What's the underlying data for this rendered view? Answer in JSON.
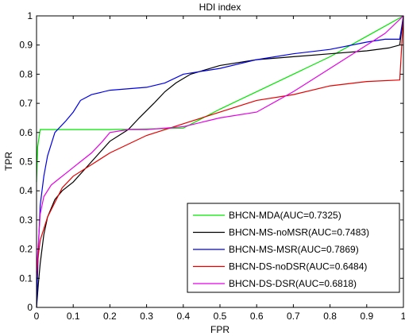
{
  "chart_data": {
    "type": "line",
    "title": "HDI index",
    "xlabel": "FPR",
    "ylabel": "TPR",
    "xlim": [
      0,
      1
    ],
    "ylim": [
      0,
      1
    ],
    "xticks": [
      0,
      0.1,
      0.2,
      0.3,
      0.4,
      0.5,
      0.6,
      0.7,
      0.8,
      0.9,
      1
    ],
    "yticks": [
      0,
      0.1,
      0.2,
      0.3,
      0.4,
      0.5,
      0.6,
      0.7,
      0.8,
      0.9,
      1
    ],
    "xtick_labels": [
      "0",
      "0.1",
      "0.2",
      "0.3",
      "0.4",
      "0.5",
      "0.6",
      "0.7",
      "0.8",
      "0.9",
      "1"
    ],
    "ytick_labels": [
      "0",
      "0.1",
      "0.2",
      "0.3",
      "0.4",
      "0.5",
      "0.6",
      "0.7",
      "0.8",
      "0.9",
      "1"
    ],
    "grid": false,
    "legend_position": "bottom-right",
    "series": [
      {
        "name": "BHCN-MDA(AUC=0.7325)",
        "color": "#00e600",
        "points": [
          [
            0,
            0.43
          ],
          [
            0.003,
            0.55
          ],
          [
            0.01,
            0.61
          ],
          [
            0.02,
            0.61
          ],
          [
            0.1,
            0.61
          ],
          [
            0.2,
            0.61
          ],
          [
            0.3,
            0.612
          ],
          [
            0.4,
            0.615
          ],
          [
            0.5,
            0.68
          ],
          [
            0.6,
            0.74
          ],
          [
            0.7,
            0.8
          ],
          [
            0.8,
            0.86
          ],
          [
            0.9,
            0.93
          ],
          [
            1,
            1
          ]
        ]
      },
      {
        "name": "BHCN-MS-noMSR(AUC=0.7483)",
        "color": "#000000",
        "points": [
          [
            0,
            0
          ],
          [
            0.005,
            0.08
          ],
          [
            0.01,
            0.15
          ],
          [
            0.02,
            0.25
          ],
          [
            0.03,
            0.31
          ],
          [
            0.05,
            0.37
          ],
          [
            0.07,
            0.4
          ],
          [
            0.1,
            0.43
          ],
          [
            0.15,
            0.5
          ],
          [
            0.2,
            0.57
          ],
          [
            0.25,
            0.61
          ],
          [
            0.28,
            0.65
          ],
          [
            0.32,
            0.7
          ],
          [
            0.35,
            0.74
          ],
          [
            0.38,
            0.77
          ],
          [
            0.42,
            0.8
          ],
          [
            0.5,
            0.83
          ],
          [
            0.6,
            0.85
          ],
          [
            0.7,
            0.86
          ],
          [
            0.8,
            0.87
          ],
          [
            0.9,
            0.88
          ],
          [
            0.96,
            0.89
          ],
          [
            0.99,
            0.9
          ],
          [
            1,
            1
          ]
        ]
      },
      {
        "name": "BHCN-MS-MSR(AUC=0.7869)",
        "color": "#0000e6",
        "points": [
          [
            0,
            0
          ],
          [
            0.005,
            0.2
          ],
          [
            0.01,
            0.35
          ],
          [
            0.02,
            0.45
          ],
          [
            0.03,
            0.52
          ],
          [
            0.05,
            0.6
          ],
          [
            0.08,
            0.64
          ],
          [
            0.1,
            0.67
          ],
          [
            0.12,
            0.71
          ],
          [
            0.15,
            0.73
          ],
          [
            0.2,
            0.745
          ],
          [
            0.3,
            0.755
          ],
          [
            0.35,
            0.77
          ],
          [
            0.4,
            0.8
          ],
          [
            0.5,
            0.82
          ],
          [
            0.6,
            0.85
          ],
          [
            0.7,
            0.87
          ],
          [
            0.8,
            0.885
          ],
          [
            0.9,
            0.91
          ],
          [
            0.95,
            0.92
          ],
          [
            0.99,
            0.92
          ],
          [
            1,
            1
          ]
        ]
      },
      {
        "name": "BHCN-DS-noDSR(AUC=0.6484)",
        "color": "#e60000",
        "points": [
          [
            0,
            0.1
          ],
          [
            0.005,
            0.18
          ],
          [
            0.01,
            0.23
          ],
          [
            0.02,
            0.27
          ],
          [
            0.03,
            0.31
          ],
          [
            0.05,
            0.36
          ],
          [
            0.07,
            0.41
          ],
          [
            0.1,
            0.45
          ],
          [
            0.15,
            0.49
          ],
          [
            0.2,
            0.53
          ],
          [
            0.25,
            0.56
          ],
          [
            0.3,
            0.59
          ],
          [
            0.4,
            0.63
          ],
          [
            0.5,
            0.67
          ],
          [
            0.6,
            0.71
          ],
          [
            0.7,
            0.73
          ],
          [
            0.8,
            0.76
          ],
          [
            0.9,
            0.775
          ],
          [
            0.99,
            0.78
          ],
          [
            1,
            1
          ]
        ]
      },
      {
        "name": "BHCN-DS-DSR(AUC=0.6818)",
        "color": "#e600e6",
        "points": [
          [
            0,
            0.12
          ],
          [
            0.005,
            0.22
          ],
          [
            0.01,
            0.32
          ],
          [
            0.02,
            0.38
          ],
          [
            0.04,
            0.42
          ],
          [
            0.06,
            0.44
          ],
          [
            0.08,
            0.46
          ],
          [
            0.1,
            0.48
          ],
          [
            0.12,
            0.5
          ],
          [
            0.15,
            0.53
          ],
          [
            0.18,
            0.57
          ],
          [
            0.2,
            0.6
          ],
          [
            0.25,
            0.61
          ],
          [
            0.3,
            0.61
          ],
          [
            0.4,
            0.62
          ],
          [
            0.5,
            0.65
          ],
          [
            0.6,
            0.67
          ],
          [
            0.7,
            0.74
          ],
          [
            0.8,
            0.82
          ],
          [
            0.9,
            0.9
          ],
          [
            0.95,
            0.94
          ],
          [
            1,
            1
          ]
        ]
      }
    ]
  }
}
